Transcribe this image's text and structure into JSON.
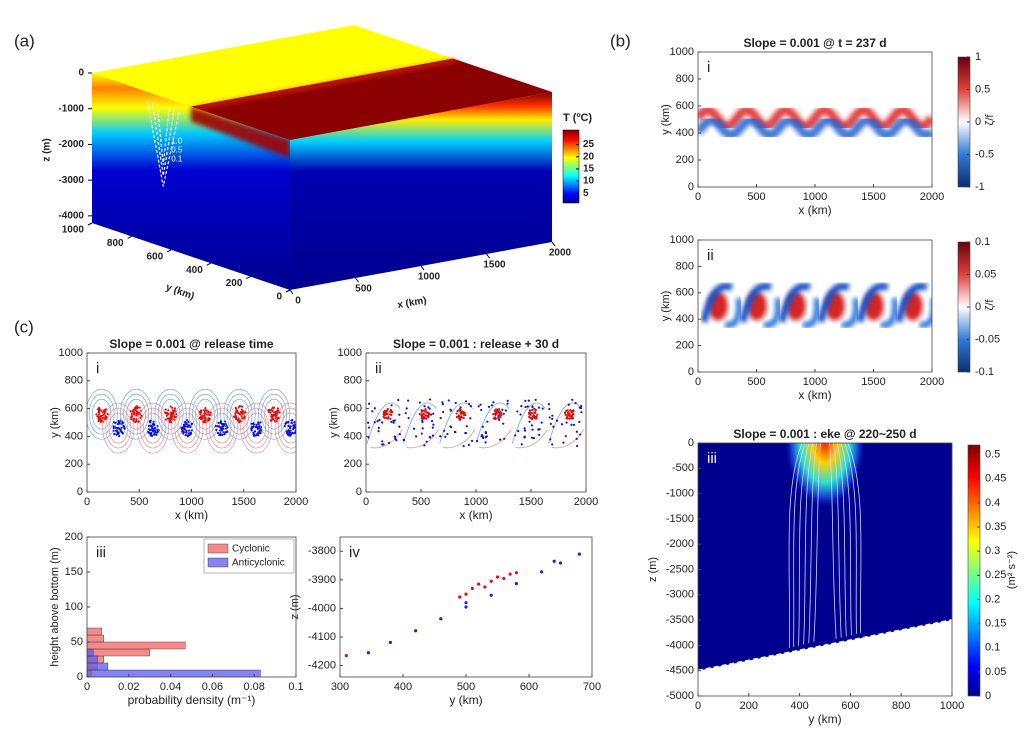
{
  "chart_data": [
    {
      "type": "surface3d",
      "panel": "(a)",
      "zlabel": "z (m)",
      "zlim": [
        -4200,
        0
      ],
      "zticks": [
        0,
        -1000,
        -2000,
        -3000,
        -4000
      ],
      "ylabel": "y (km)",
      "ylim": [
        0,
        1000
      ],
      "yticks": [
        1000,
        800,
        600,
        400,
        200,
        0
      ],
      "xlabel": "x (km)",
      "xlim": [
        0,
        2000
      ],
      "xticks": [
        0,
        500,
        1000,
        1500,
        2000
      ],
      "colorbar_label": "T (ºC)",
      "clim": [
        1,
        31
      ],
      "cticks": [
        5,
        10,
        15,
        20,
        25
      ],
      "contour_labels": [
        "1.0",
        "0.5",
        "0.1"
      ]
    },
    {
      "type": "heatmap",
      "group_label": "(b)",
      "panel": "i",
      "title": "Slope = 0.001 @ t = 237 d",
      "xlabel": "x (km)",
      "ylabel": "y (km)",
      "xlim": [
        0,
        2000
      ],
      "xticks": [
        0,
        500,
        1000,
        1500,
        2000
      ],
      "ylim": [
        0,
        1000
      ],
      "yticks": [
        0,
        200,
        400,
        600,
        800,
        1000
      ],
      "colorbar_label": "ζ/f",
      "clim": [
        -1,
        1
      ],
      "cticks": [
        -1,
        -0.5,
        0,
        0.5,
        1
      ]
    },
    {
      "type": "heatmap",
      "panel": "ii",
      "xlabel": "x (km)",
      "ylabel": "y (km)",
      "xlim": [
        0,
        2000
      ],
      "xticks": [
        0,
        500,
        1000,
        1500,
        2000
      ],
      "ylim": [
        0,
        1000
      ],
      "yticks": [
        0,
        200,
        400,
        600,
        800,
        1000
      ],
      "colorbar_label": "ζ/f",
      "clim": [
        -0.1,
        0.1
      ],
      "cticks": [
        -0.1,
        -0.05,
        0,
        0.05,
        0.1
      ]
    },
    {
      "type": "heatmap",
      "panel": "iii",
      "title": "Slope = 0.001 : eke @ 220~250 d",
      "xlabel": "y (km)",
      "ylabel": "z (m)",
      "xlim": [
        0,
        1000
      ],
      "xticks": [
        0,
        200,
        400,
        600,
        800,
        1000
      ],
      "ylim": [
        -5000,
        0
      ],
      "yticks": [
        0,
        -500,
        -1000,
        -1500,
        -2000,
        -2500,
        -3000,
        -3500,
        -4000,
        -4500,
        -5000
      ],
      "colorbar_label": "(m² s⁻²)",
      "clim": [
        0,
        0.52
      ],
      "cticks": [
        0,
        0.05,
        0.1,
        0.15,
        0.2,
        0.25,
        0.3,
        0.35,
        0.4,
        0.45,
        0.5
      ]
    },
    {
      "type": "heatmap",
      "group_label": "(c)",
      "panel": "i",
      "title": "Slope = 0.001 @ release time",
      "xlabel": "x (km)",
      "ylabel": "y (km)",
      "xlim": [
        0,
        2000
      ],
      "xticks": [
        0,
        500,
        1000,
        1500,
        2000
      ],
      "ylim": [
        0,
        1000
      ],
      "yticks": [
        0,
        200,
        400,
        600,
        800,
        1000
      ]
    },
    {
      "type": "heatmap",
      "panel": "ii",
      "title": "Slope = 0.001 : release + 30 d",
      "xlabel": "x (km)",
      "ylabel": "y (km)",
      "xlim": [
        0,
        2000
      ],
      "xticks": [
        0,
        500,
        1000,
        1500,
        2000
      ],
      "ylim": [
        0,
        1000
      ],
      "yticks": [
        0,
        200,
        400,
        600,
        800,
        1000
      ]
    },
    {
      "type": "histogram",
      "panel": "iii",
      "orientation": "horizontal",
      "xlabel": "probability density (m⁻¹)",
      "ylabel": "height above bottom (m)",
      "xlim": [
        0,
        0.1
      ],
      "xticks": [
        0,
        0.02,
        0.04,
        0.06,
        0.08,
        0.1
      ],
      "ylim": [
        0,
        200
      ],
      "yticks": [
        0,
        50,
        100,
        150,
        200
      ],
      "legend": "upper right",
      "bins": [
        0,
        10,
        20,
        30,
        40,
        50,
        60,
        70
      ],
      "series": [
        {
          "name": "Cyclonic",
          "color": "#f06464",
          "values": [
            0.002,
            0.005,
            0.008,
            0.03,
            0.047,
            0.008,
            0.007
          ]
        },
        {
          "name": "Anticyclonic",
          "color": "#5a5af0",
          "values": [
            0.083,
            0.01,
            0.005,
            0.003,
            0,
            0,
            0
          ]
        }
      ]
    },
    {
      "type": "scatter",
      "panel": "iv",
      "xlabel": "y (km)",
      "ylabel": "z (m)",
      "xlim": [
        300,
        700
      ],
      "xticks": [
        300,
        400,
        500,
        600,
        700
      ],
      "ylim": [
        -4240,
        -3750
      ],
      "yticks": [
        -3800,
        -3900,
        -4000,
        -4100,
        -4200
      ],
      "series": [
        {
          "color": "#2020e0",
          "x": [
            345,
            380,
            420,
            460,
            500,
            540,
            580,
            620,
            650,
            680,
            640,
            500
          ],
          "y": [
            -4155,
            -4119,
            -4078,
            -4036,
            -3995,
            -3954,
            -3913,
            -3872,
            -3841,
            -3810,
            -3835,
            -3980
          ]
        },
        {
          "color": "#e01010",
          "x": [
            490,
            510,
            520,
            540,
            550,
            560,
            570,
            530,
            500,
            310,
            580
          ],
          "y": [
            -3960,
            -3930,
            -3915,
            -3905,
            -3890,
            -3895,
            -3880,
            -3925,
            -3950,
            -4165,
            -3875
          ]
        }
      ]
    }
  ]
}
